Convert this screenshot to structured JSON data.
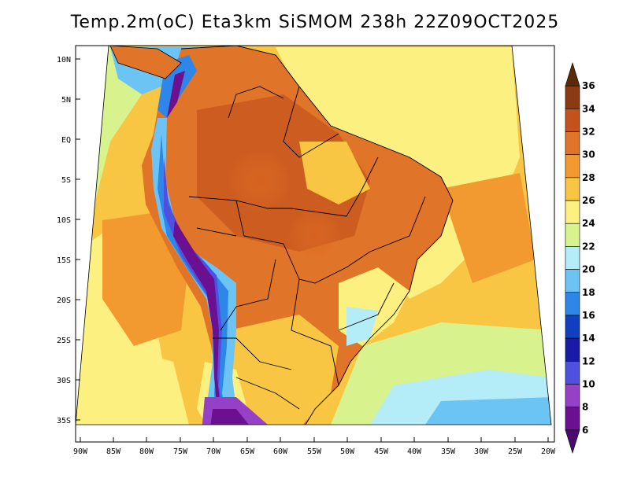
{
  "title": "Temp.2m(oC) Eta3km SiSMOM 238h 22Z09OCT2025",
  "lat_labels": [
    "10N",
    "5N",
    "EQ",
    "5S",
    "10S",
    "15S",
    "20S",
    "25S",
    "30S",
    "35S"
  ],
  "lon_labels": [
    "90W",
    "85W",
    "80W",
    "75W",
    "70W",
    "65W",
    "60W",
    "55W",
    "50W",
    "45W",
    "40W",
    "35W",
    "30W",
    "25W",
    "20W"
  ],
  "colorbar": {
    "labels": [
      "36",
      "34",
      "32",
      "30",
      "28",
      "26",
      "24",
      "22",
      "20",
      "18",
      "16",
      "14",
      "12",
      "10",
      "8",
      "6"
    ],
    "colors": [
      "#5a2a0a",
      "#8b3a12",
      "#c4521c",
      "#e07428",
      "#f29a30",
      "#f8c642",
      "#fbf080",
      "#d8f28e",
      "#b4ecf8",
      "#6cc4f4",
      "#2e86e8",
      "#1040c0",
      "#1a1aa8",
      "#5050e0",
      "#9640c8",
      "#6a1090",
      "#4a0a70"
    ]
  }
}
